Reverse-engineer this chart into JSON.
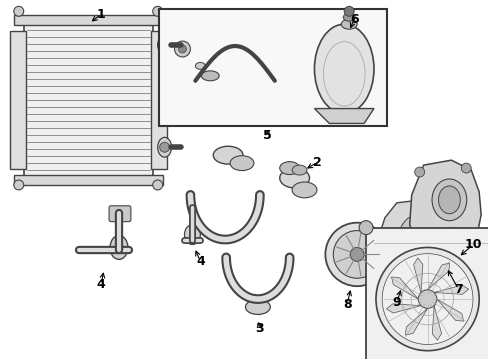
{
  "bg_color": "#ffffff",
  "line_color": "#444444",
  "label_color": "#000000",
  "font_size": 8
}
